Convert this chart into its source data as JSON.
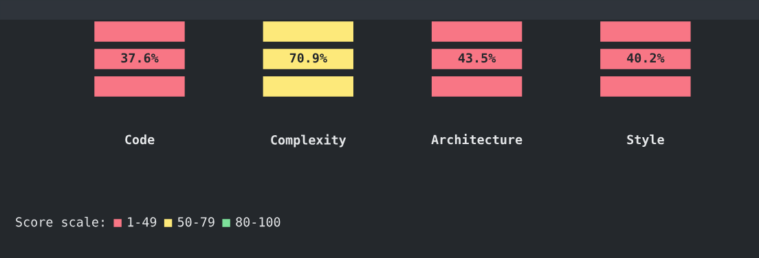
{
  "chart_data": {
    "type": "other",
    "categories": [
      "Code",
      "Complexity",
      "Architecture",
      "Style"
    ],
    "legend_title": "Score scale:",
    "legend": "bottom left",
    "series": [
      {
        "name": "1-49",
        "color": "#f87685",
        "values": [
          37.6,
          null,
          43.5,
          40.2
        ],
        "value_labels": [
          "37.6%",
          null,
          "43.5%",
          "40.2%"
        ]
      },
      {
        "name": "50-79",
        "color": "#fde97a",
        "values": [
          null,
          70.9,
          null,
          null
        ],
        "value_labels": [
          null,
          "70.9%",
          null,
          null
        ]
      },
      {
        "name": "80-100",
        "color": "#7ee29b",
        "values": [
          null,
          null,
          null,
          null
        ],
        "value_labels": [
          null,
          null,
          null,
          null
        ]
      }
    ]
  }
}
